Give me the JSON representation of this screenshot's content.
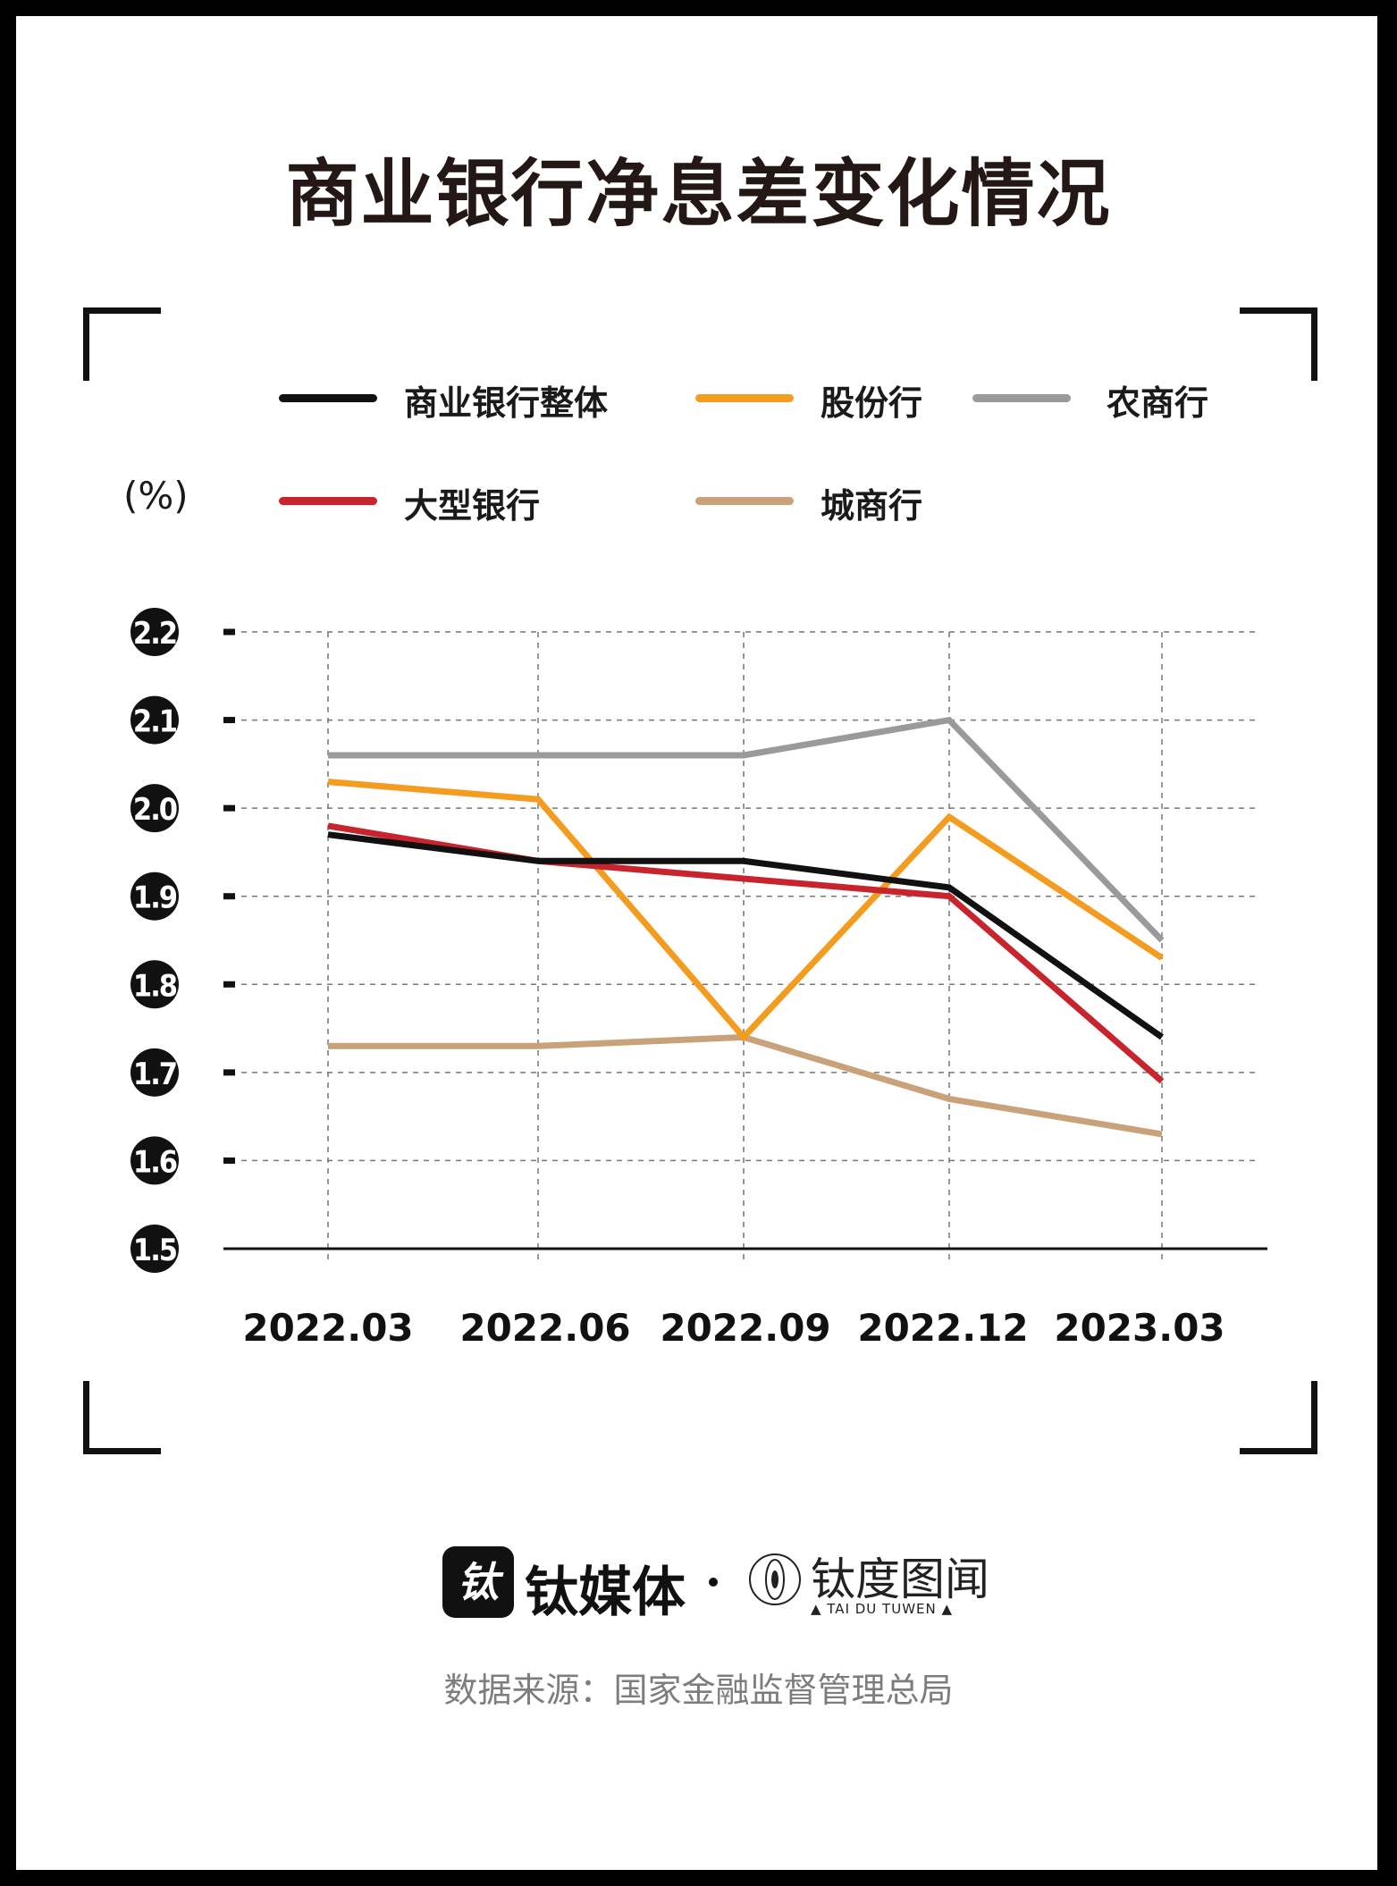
{
  "title": "商业银行净息差变化情况",
  "unit": "(%)",
  "legend": [
    {
      "label": "商业银行整体",
      "color": "#111111"
    },
    {
      "label": "股份行",
      "color": "#f39c1f"
    },
    {
      "label": "农商行",
      "color": "#9a9a9a"
    },
    {
      "label": "大型银行",
      "color": "#c8242e"
    },
    {
      "label": "城商行",
      "color": "#c9a27a"
    }
  ],
  "chart_data": {
    "type": "line",
    "title": "商业银行净息差变化情况",
    "x": [
      "2022.03",
      "2022.06",
      "2022.09",
      "2022.12",
      "2023.03"
    ],
    "ylabel": "(%)",
    "ylim": [
      1.5,
      2.2
    ],
    "yticks": [
      "1.5",
      "1.6",
      "1.7",
      "1.8",
      "1.9",
      "2.0",
      "2.1",
      "2.2"
    ],
    "grid": true,
    "legend_position": "top",
    "series": [
      {
        "name": "商业银行整体",
        "color": "#111111",
        "values": [
          1.97,
          1.94,
          1.94,
          1.91,
          1.74
        ]
      },
      {
        "name": "股份行",
        "color": "#f39c1f",
        "values": [
          2.03,
          2.01,
          1.74,
          1.99,
          1.83
        ]
      },
      {
        "name": "农商行",
        "color": "#9a9a9a",
        "values": [
          2.06,
          2.06,
          2.06,
          2.1,
          1.85
        ]
      },
      {
        "name": "大型银行",
        "color": "#c8242e",
        "values": [
          1.98,
          1.94,
          1.92,
          1.9,
          1.69
        ]
      },
      {
        "name": "城商行",
        "color": "#c9a27a",
        "values": [
          1.73,
          1.73,
          1.74,
          1.67,
          1.63
        ]
      }
    ]
  },
  "logos": {
    "brand1_badge": "钛",
    "brand1_name": "钛媒体",
    "brand2_name": "钛度图闻",
    "brand2_sub": "▲ TAI DU TUWEN ▲"
  },
  "source": "数据来源：国家金融监督管理总局"
}
